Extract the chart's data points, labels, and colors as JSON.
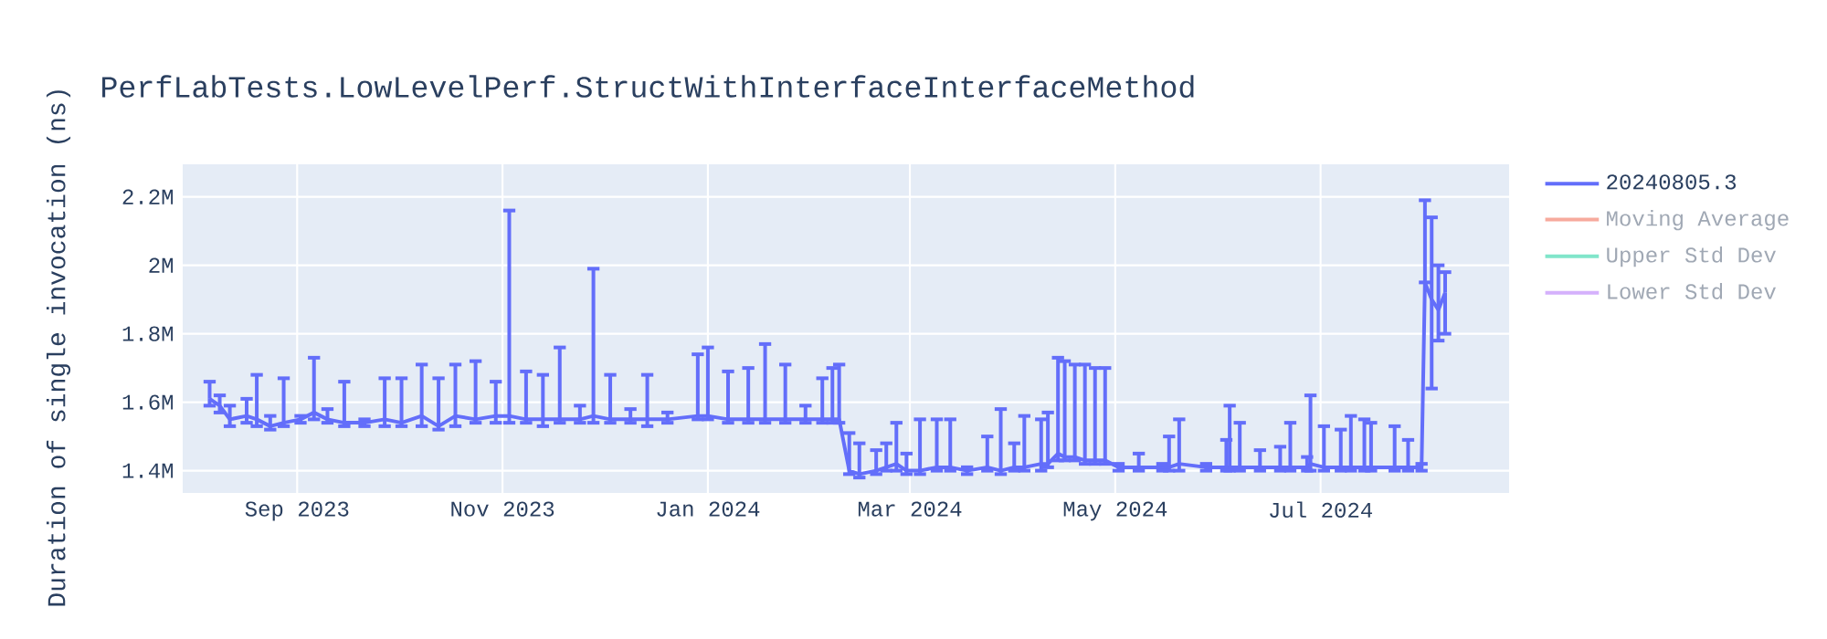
{
  "chart_data": {
    "type": "line",
    "title": "PerfLabTests.LowLevelPerf.StructWithInterfaceInterfaceMethod",
    "ylabel": "Duration of single invocation (ns)",
    "x": [
      "2023-08-06",
      "2023-08-09",
      "2023-08-12",
      "2023-08-17",
      "2023-08-20",
      "2023-08-24",
      "2023-08-28",
      "2023-09-02",
      "2023-09-06",
      "2023-09-10",
      "2023-09-15",
      "2023-09-21",
      "2023-09-27",
      "2023-10-02",
      "2023-10-08",
      "2023-10-13",
      "2023-10-18",
      "2023-10-24",
      "2023-10-30",
      "2023-11-03",
      "2023-11-08",
      "2023-11-13",
      "2023-11-18",
      "2023-11-24",
      "2023-11-28",
      "2023-12-03",
      "2023-12-09",
      "2023-12-14",
      "2023-12-20",
      "2023-12-29",
      "2024-01-01",
      "2024-01-07",
      "2024-01-13",
      "2024-01-18",
      "2024-01-24",
      "2024-01-30",
      "2024-02-04",
      "2024-02-07",
      "2024-02-09",
      "2024-02-12",
      "2024-02-15",
      "2024-02-20",
      "2024-02-23",
      "2024-02-26",
      "2024-02-29",
      "2024-03-04",
      "2024-03-09",
      "2024-03-13",
      "2024-03-18",
      "2024-03-24",
      "2024-03-28",
      "2024-04-01",
      "2024-04-04",
      "2024-04-09",
      "2024-04-11",
      "2024-04-14",
      "2024-04-16",
      "2024-04-19",
      "2024-04-22",
      "2024-04-25",
      "2024-04-28",
      "2024-05-02",
      "2024-05-08",
      "2024-05-15",
      "2024-05-17",
      "2024-05-20",
      "2024-05-28",
      "2024-06-03",
      "2024-06-04",
      "2024-06-07",
      "2024-06-13",
      "2024-06-19",
      "2024-06-22",
      "2024-06-27",
      "2024-06-28",
      "2024-07-02",
      "2024-07-07",
      "2024-07-10",
      "2024-07-14",
      "2024-07-16",
      "2024-07-23",
      "2024-07-27",
      "2024-07-31",
      "2024-08-01",
      "2024-08-03",
      "2024-08-05",
      "2024-08-07"
    ],
    "series": [
      {
        "name": "20240805.3",
        "color": "#636efa",
        "values": [
          1610000,
          1590000,
          1550000,
          1560000,
          1550000,
          1530000,
          1540000,
          1550000,
          1570000,
          1550000,
          1540000,
          1540000,
          1550000,
          1540000,
          1560000,
          1530000,
          1560000,
          1550000,
          1560000,
          1560000,
          1550000,
          1550000,
          1550000,
          1550000,
          1560000,
          1550000,
          1550000,
          1550000,
          1550000,
          1560000,
          1560000,
          1550000,
          1550000,
          1550000,
          1550000,
          1550000,
          1550000,
          1550000,
          1550000,
          1400000,
          1390000,
          1400000,
          1410000,
          1420000,
          1400000,
          1400000,
          1410000,
          1410000,
          1400000,
          1410000,
          1400000,
          1410000,
          1410000,
          1420000,
          1420000,
          1450000,
          1440000,
          1440000,
          1430000,
          1430000,
          1430000,
          1410000,
          1410000,
          1410000,
          1410000,
          1420000,
          1410000,
          1410000,
          1410000,
          1410000,
          1410000,
          1410000,
          1410000,
          1410000,
          1420000,
          1410000,
          1410000,
          1410000,
          1410000,
          1410000,
          1410000,
          1410000,
          1410000,
          1950000,
          1900000,
          1870000,
          1920000
        ],
        "errors": [
          [
            1590000,
            1660000
          ],
          [
            1570000,
            1620000
          ],
          [
            1530000,
            1590000
          ],
          [
            1540000,
            1610000
          ],
          [
            1530000,
            1680000
          ],
          [
            1520000,
            1560000
          ],
          [
            1530000,
            1670000
          ],
          [
            1540000,
            1560000
          ],
          [
            1550000,
            1730000
          ],
          [
            1540000,
            1580000
          ],
          [
            1530000,
            1660000
          ],
          [
            1530000,
            1550000
          ],
          [
            1530000,
            1670000
          ],
          [
            1530000,
            1670000
          ],
          [
            1530000,
            1710000
          ],
          [
            1520000,
            1670000
          ],
          [
            1530000,
            1710000
          ],
          [
            1540000,
            1720000
          ],
          [
            1540000,
            1660000
          ],
          [
            1540000,
            2160000
          ],
          [
            1540000,
            1690000
          ],
          [
            1530000,
            1680000
          ],
          [
            1540000,
            1760000
          ],
          [
            1540000,
            1590000
          ],
          [
            1540000,
            1990000
          ],
          [
            1540000,
            1680000
          ],
          [
            1540000,
            1580000
          ],
          [
            1530000,
            1680000
          ],
          [
            1540000,
            1570000
          ],
          [
            1550000,
            1740000
          ],
          [
            1550000,
            1760000
          ],
          [
            1540000,
            1690000
          ],
          [
            1540000,
            1700000
          ],
          [
            1540000,
            1770000
          ],
          [
            1540000,
            1710000
          ],
          [
            1540000,
            1590000
          ],
          [
            1540000,
            1670000
          ],
          [
            1540000,
            1700000
          ],
          [
            1540000,
            1710000
          ],
          [
            1390000,
            1510000
          ],
          [
            1380000,
            1480000
          ],
          [
            1390000,
            1460000
          ],
          [
            1400000,
            1480000
          ],
          [
            1400000,
            1540000
          ],
          [
            1390000,
            1450000
          ],
          [
            1390000,
            1550000
          ],
          [
            1400000,
            1550000
          ],
          [
            1400000,
            1550000
          ],
          [
            1390000,
            1410000
          ],
          [
            1400000,
            1500000
          ],
          [
            1390000,
            1580000
          ],
          [
            1400000,
            1480000
          ],
          [
            1400000,
            1560000
          ],
          [
            1400000,
            1550000
          ],
          [
            1410000,
            1570000
          ],
          [
            1430000,
            1730000
          ],
          [
            1430000,
            1720000
          ],
          [
            1430000,
            1710000
          ],
          [
            1420000,
            1710000
          ],
          [
            1420000,
            1700000
          ],
          [
            1420000,
            1700000
          ],
          [
            1400000,
            1420000
          ],
          [
            1400000,
            1450000
          ],
          [
            1400000,
            1420000
          ],
          [
            1400000,
            1500000
          ],
          [
            1400000,
            1550000
          ],
          [
            1400000,
            1420000
          ],
          [
            1400000,
            1490000
          ],
          [
            1400000,
            1590000
          ],
          [
            1400000,
            1540000
          ],
          [
            1400000,
            1460000
          ],
          [
            1400000,
            1470000
          ],
          [
            1400000,
            1540000
          ],
          [
            1400000,
            1440000
          ],
          [
            1400000,
            1620000
          ],
          [
            1400000,
            1530000
          ],
          [
            1400000,
            1520000
          ],
          [
            1400000,
            1560000
          ],
          [
            1400000,
            1550000
          ],
          [
            1400000,
            1540000
          ],
          [
            1400000,
            1530000
          ],
          [
            1400000,
            1490000
          ],
          [
            1400000,
            1420000
          ],
          [
            1950000,
            2190000
          ],
          [
            1640000,
            2140000
          ],
          [
            1780000,
            2000000
          ],
          [
            1800000,
            1980000
          ]
        ]
      },
      {
        "name": "Moving Average",
        "color": "#f7aa9d",
        "values": [
          null,
          null,
          null,
          null,
          null,
          null,
          null,
          null,
          null,
          null,
          null,
          null,
          null,
          null,
          null,
          null,
          null,
          null,
          null,
          null,
          null,
          null,
          null,
          null,
          null,
          null,
          null,
          null,
          null,
          null,
          null,
          null,
          null,
          null,
          null,
          null,
          null,
          null,
          null,
          null,
          null,
          null,
          null,
          null,
          null,
          null,
          null,
          null,
          null,
          null,
          null,
          null,
          null,
          null,
          null,
          null,
          null,
          null,
          null,
          null,
          null,
          null,
          null,
          null,
          null,
          null,
          null,
          null,
          null,
          null,
          null,
          null,
          null,
          null,
          null,
          null,
          null,
          null,
          null,
          null,
          null,
          null,
          null,
          null,
          null,
          null,
          null
        ]
      },
      {
        "name": "Upper Std Dev",
        "color": "#80e5ca",
        "values": [
          null,
          null,
          null,
          null,
          null,
          null,
          null,
          null,
          null,
          null,
          null,
          null,
          null,
          null,
          null,
          null,
          null,
          null,
          null,
          null,
          null,
          null,
          null,
          null,
          null,
          null,
          null,
          null,
          null,
          null,
          null,
          null,
          null,
          null,
          null,
          null,
          null,
          null,
          null,
          null,
          null,
          null,
          null,
          null,
          null,
          null,
          null,
          null,
          null,
          null,
          null,
          null,
          null,
          null,
          null,
          null,
          null,
          null,
          null,
          null,
          null,
          null,
          null,
          null,
          null,
          null,
          null,
          null,
          null,
          null,
          null,
          null,
          null,
          null,
          null,
          null,
          null,
          null,
          null,
          null,
          null,
          null,
          null,
          null,
          null,
          null,
          null
        ]
      },
      {
        "name": "Lower Std Dev",
        "color": "#d5b1fc",
        "values": [
          null,
          null,
          null,
          null,
          null,
          null,
          null,
          null,
          null,
          null,
          null,
          null,
          null,
          null,
          null,
          null,
          null,
          null,
          null,
          null,
          null,
          null,
          null,
          null,
          null,
          null,
          null,
          null,
          null,
          null,
          null,
          null,
          null,
          null,
          null,
          null,
          null,
          null,
          null,
          null,
          null,
          null,
          null,
          null,
          null,
          null,
          null,
          null,
          null,
          null,
          null,
          null,
          null,
          null,
          null,
          null,
          null,
          null,
          null,
          null,
          null,
          null,
          null,
          null,
          null,
          null,
          null,
          null,
          null,
          null,
          null,
          null,
          null,
          null,
          null,
          null,
          null,
          null,
          null,
          null,
          null,
          null,
          null,
          null,
          null,
          null,
          null
        ]
      }
    ],
    "xlim": [
      "2023-07-29",
      "2024-08-26"
    ],
    "xticks": [
      {
        "value": "2023-09-01",
        "label": "Sep 2023"
      },
      {
        "value": "2023-11-01",
        "label": "Nov 2023"
      },
      {
        "value": "2024-01-01",
        "label": "Jan 2024"
      },
      {
        "value": "2024-03-01",
        "label": "Mar 2024"
      },
      {
        "value": "2024-05-01",
        "label": "May 2024"
      },
      {
        "value": "2024-07-01",
        "label": "Jul 2024"
      }
    ],
    "ylim": [
      1335000,
      2295000
    ],
    "yticks": [
      {
        "value": 1400000,
        "label": "1.4M"
      },
      {
        "value": 1600000,
        "label": "1.6M"
      },
      {
        "value": 1800000,
        "label": "1.8M"
      },
      {
        "value": 2000000,
        "label": "2M"
      },
      {
        "value": 2200000,
        "label": "2.2M"
      }
    ],
    "grid": true,
    "legend": "top right",
    "marker": "none",
    "line_style": "solid"
  }
}
